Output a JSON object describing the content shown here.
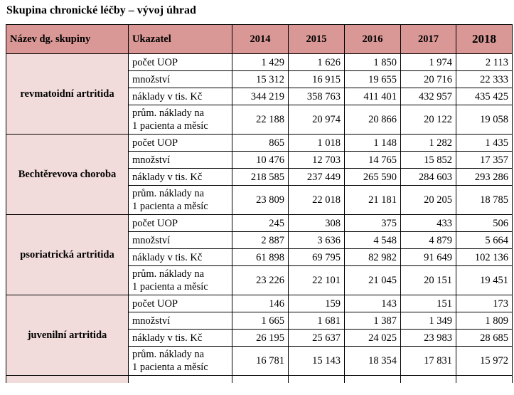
{
  "title": "Skupina chronické léčby – vývoj úhrad",
  "table": {
    "headers": {
      "group": "Název dg. skupiny",
      "indicator": "Ukazatel",
      "years": [
        "2014",
        "2015",
        "2016",
        "2017",
        "2018"
      ]
    },
    "groups": [
      {
        "name": "revmatoidní artritida",
        "rows": [
          {
            "indicator": "počet UOP",
            "values": [
              "1 429",
              "1 626",
              "1 850",
              "1 974",
              "2 113"
            ]
          },
          {
            "indicator": "množství",
            "values": [
              "15 312",
              "16 915",
              "19 655",
              "20 716",
              "22 333"
            ]
          },
          {
            "indicator": "náklady v tis. Kč",
            "values": [
              "344 219",
              "358 763",
              "411 401",
              "432 957",
              "435 425"
            ]
          },
          {
            "indicator_line1": "prům. náklady na",
            "indicator_line2": "1 pacienta a měsíc",
            "values": [
              "22 188",
              "20 974",
              "20 866",
              "20 122",
              "19 058"
            ]
          }
        ]
      },
      {
        "name": "Bechtěrevova choroba",
        "rows": [
          {
            "indicator": "počet UOP",
            "values": [
              "865",
              "1 018",
              "1 148",
              "1 282",
              "1 435"
            ]
          },
          {
            "indicator": "množství",
            "values": [
              "10 476",
              "12 703",
              "14 765",
              "15 852",
              "17 357"
            ]
          },
          {
            "indicator": "náklady v tis. Kč",
            "values": [
              "218 585",
              "237 449",
              "265 590",
              "284 603",
              "293 286"
            ]
          },
          {
            "indicator_line1": "prům. náklady na",
            "indicator_line2": "1 pacienta a měsíc",
            "values": [
              "23 809",
              "22 018",
              "21 181",
              "20 205",
              "18 785"
            ]
          }
        ]
      },
      {
        "name": "psoriatrická artritida",
        "rows": [
          {
            "indicator": "počet UOP",
            "values": [
              "245",
              "308",
              "375",
              "433",
              "506"
            ]
          },
          {
            "indicator": "množství",
            "values": [
              "2 887",
              "3 636",
              "4 548",
              "4 879",
              "5 664"
            ]
          },
          {
            "indicator": "náklady v tis. Kč",
            "values": [
              "61 898",
              "69 795",
              "82 982",
              "91 649",
              "102 136"
            ]
          },
          {
            "indicator_line1": "prům. náklady na",
            "indicator_line2": "1 pacienta a měsíc",
            "values": [
              "23 226",
              "22 101",
              "21 045",
              "20 151",
              "19 451"
            ]
          }
        ]
      },
      {
        "name": "juvenilní artritida",
        "rows": [
          {
            "indicator": "počet UOP",
            "values": [
              "146",
              "159",
              "143",
              "151",
              "173"
            ]
          },
          {
            "indicator": "množství",
            "values": [
              "1 665",
              "1 681",
              "1 387",
              "1 349",
              "1 809"
            ]
          },
          {
            "indicator": "náklady v tis. Kč",
            "values": [
              "26 195",
              "25 637",
              "24 025",
              "23 983",
              "28 685"
            ]
          },
          {
            "indicator_line1": "prům. náklady na",
            "indicator_line2": "1 pacienta a měsíc",
            "values": [
              "16 781",
              "15 143",
              "18 354",
              "17 831",
              "15 972"
            ]
          }
        ]
      }
    ]
  }
}
